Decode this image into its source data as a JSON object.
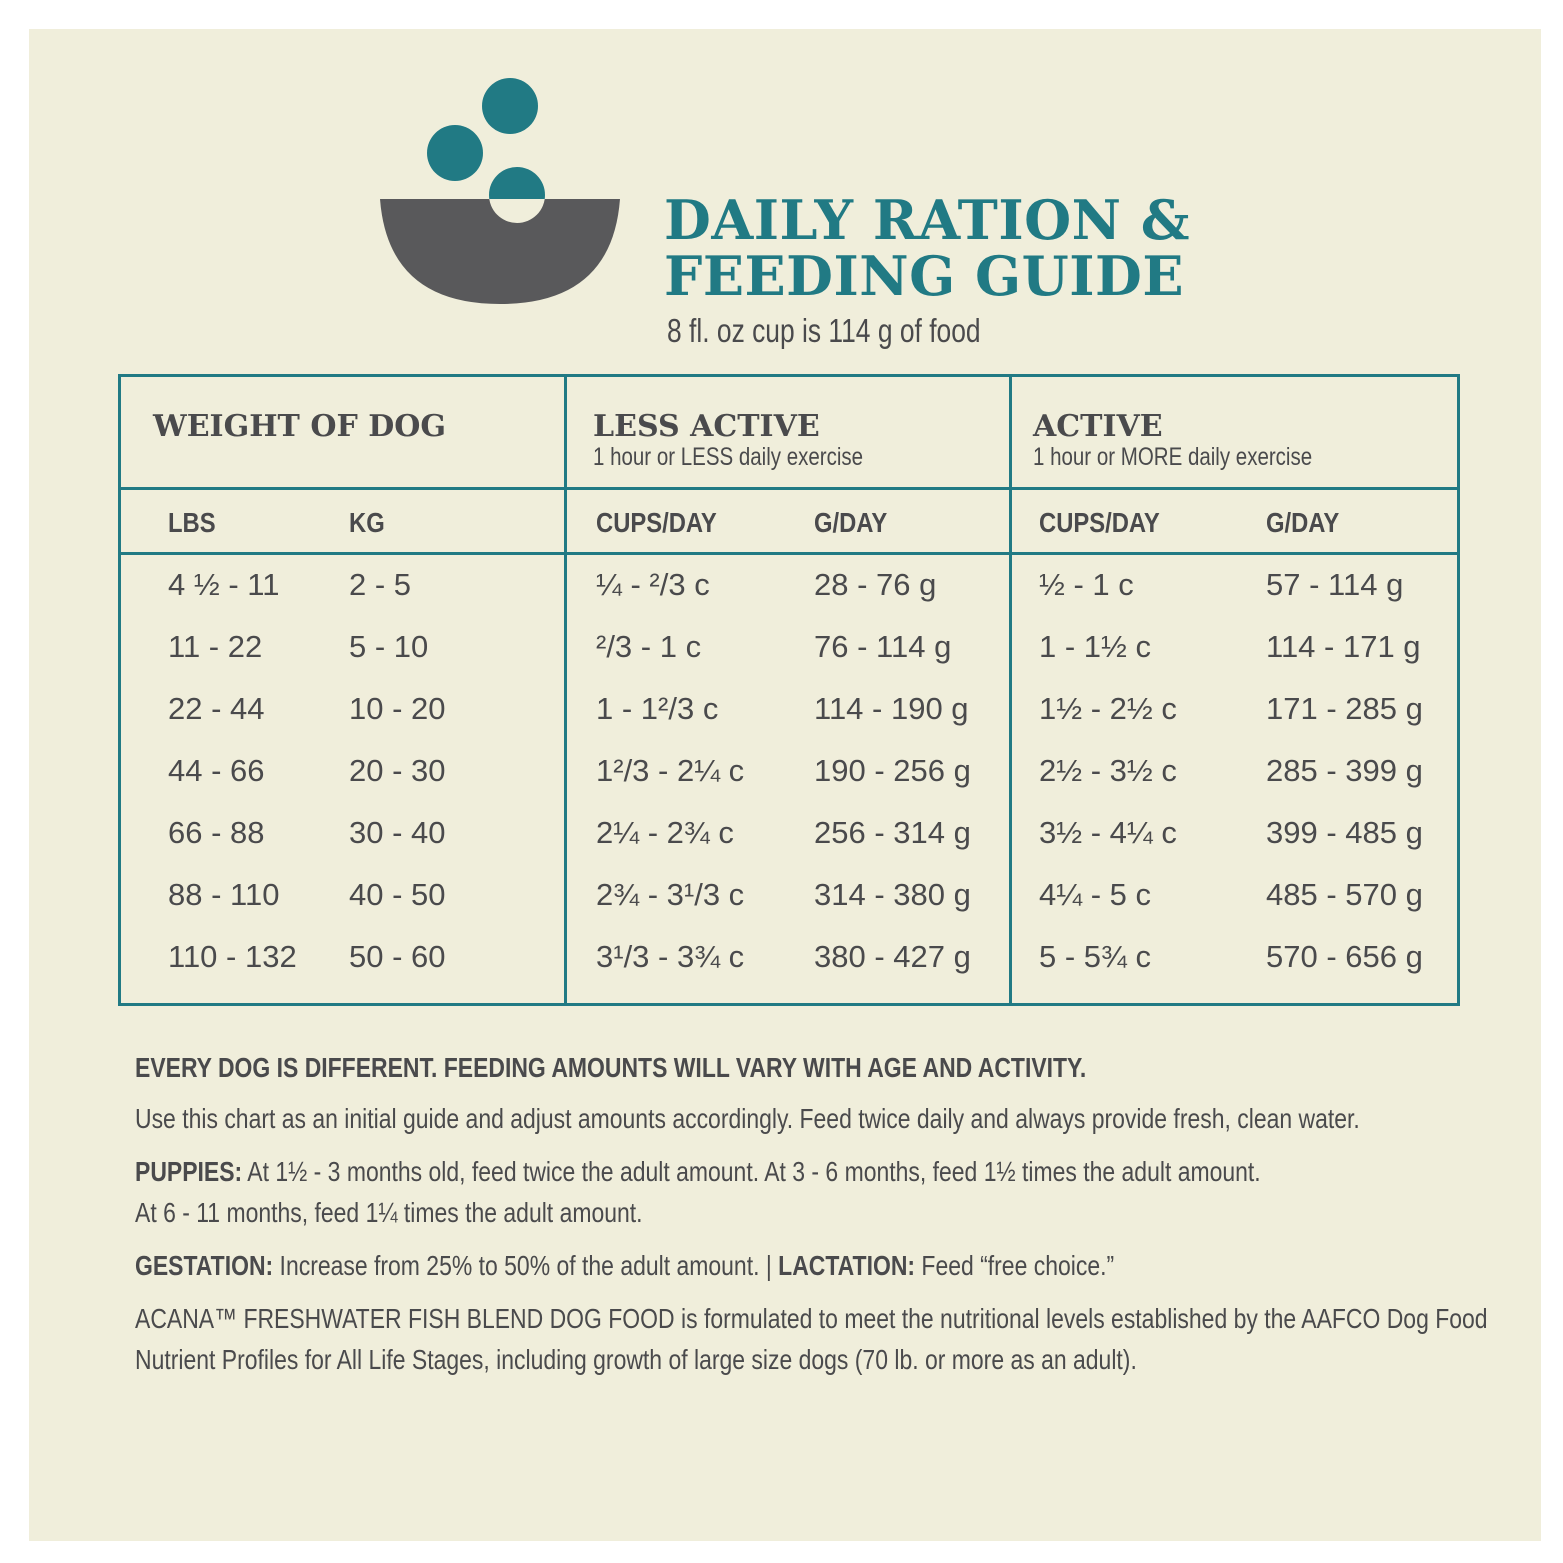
{
  "header": {
    "title_line1": "DAILY RATION &",
    "title_line2": "FEEDING GUIDE",
    "subtitle": "8 fl. oz cup is 114 g of food",
    "colors": {
      "accent": "#217a84",
      "bowl": "#59595b",
      "background": "#f0eedb"
    },
    "icon": "bowl-with-kibble-icon"
  },
  "table": {
    "groups": [
      {
        "title": "WEIGHT OF DOG",
        "subtitle": ""
      },
      {
        "title": "LESS ACTIVE",
        "subtitle": "1 hour or LESS daily exercise"
      },
      {
        "title": "ACTIVE",
        "subtitle": "1 hour or MORE daily exercise"
      }
    ],
    "columns": [
      "LBS",
      "KG",
      "CUPS/DAY",
      "G/DAY",
      "CUPS/DAY",
      "G/DAY"
    ],
    "rows": [
      [
        "4 ½ - 11",
        "2 - 5",
        "¼ - ²/3 c",
        "28 - 76 g",
        "½ - 1 c",
        "57 - 114 g"
      ],
      [
        "11 - 22",
        "5 - 10",
        "²/3 - 1 c",
        "76 - 114 g",
        "1 - 1½ c",
        "114 - 171 g"
      ],
      [
        "22 - 44",
        "10 - 20",
        "1 - 1²/3 c",
        "114 - 190 g",
        "1½ - 2½ c",
        "171 - 285 g"
      ],
      [
        "44 - 66",
        "20 - 30",
        "1²/3 - 2¼ c",
        "190 - 256 g",
        "2½ - 3½ c",
        "285 - 399 g"
      ],
      [
        "66 - 88",
        "30 - 40",
        "2¼ - 2¾ c",
        "256 - 314 g",
        "3½ - 4¼ c",
        "399 - 485 g"
      ],
      [
        "88 - 110",
        "40 - 50",
        "2¾ - 3¹/3 c",
        "314 - 380 g",
        "4¼ - 5 c",
        "485 - 570 g"
      ],
      [
        "110 - 132",
        "50 - 60",
        "3¹/3 - 3¾ c",
        "380 - 427 g",
        "5 - 5¾ c",
        "570 - 656 g"
      ]
    ]
  },
  "notes": {
    "heading": "EVERY DOG IS DIFFERENT. FEEDING AMOUNTS WILL VARY WITH AGE AND ACTIVITY.",
    "intro": "Use this chart as an initial guide and adjust amounts accordingly. Feed twice daily and always provide fresh, clean water.",
    "puppies_label": "PUPPIES:",
    "puppies_line1": " At 1½ - 3 months old, feed twice the adult amount. At 3 - 6 months, feed 1½ times the adult amount.",
    "puppies_line2": "At 6 - 11 months, feed 1¼ times the adult amount.",
    "gestation_label": "GESTATION:",
    "gestation_text": " Increase from 25% to 50% of the adult amount. | ",
    "lactation_label": "LACTATION:",
    "lactation_text": " Feed “free choice.”",
    "aafco_line1": "ACANA™ FRESHWATER FISH BLEND DOG FOOD is formulated to meet the nutritional levels established by the AAFCO Dog Food",
    "aafco_line2": "Nutrient Profiles for All Life Stages, including growth of large size dogs (70 lb. or more as an adult)."
  }
}
